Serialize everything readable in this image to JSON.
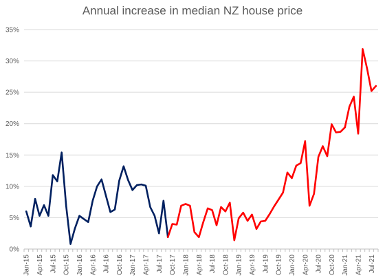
{
  "chart_data": {
    "type": "line",
    "title": "Annual increase in median NZ house price",
    "xlabel": "",
    "ylabel": "",
    "ylim": [
      0,
      35
    ],
    "yticks": [
      "0%",
      "5%",
      "10%",
      "15%",
      "20%",
      "25%",
      "30%",
      "35%"
    ],
    "grid": true,
    "legend": "none",
    "x_tick_labels": [
      "Jan-15",
      "Apr-15",
      "Jul-15",
      "Oct-15",
      "Jan-16",
      "Apr-16",
      "Jul-16",
      "Oct-16",
      "Jan-17",
      "Apr-17",
      "Jul-17",
      "Oct-17",
      "Jan-18",
      "Apr-18",
      "Jul-18",
      "Oct-18",
      "Jan-19",
      "Apr-19",
      "Jul-19",
      "Oct-19",
      "Jan-20",
      "Apr-20",
      "Jul-20",
      "Oct-20",
      "Jan-21",
      "Apr-21",
      "Jul-21"
    ],
    "x": [
      "Jan-15",
      "Feb-15",
      "Mar-15",
      "Apr-15",
      "May-15",
      "Jun-15",
      "Jul-15",
      "Aug-15",
      "Sep-15",
      "Oct-15",
      "Nov-15",
      "Dec-15",
      "Jan-16",
      "Feb-16",
      "Mar-16",
      "Apr-16",
      "May-16",
      "Jun-16",
      "Jul-16",
      "Aug-16",
      "Sep-16",
      "Oct-16",
      "Nov-16",
      "Dec-16",
      "Jan-17",
      "Feb-17",
      "Mar-17",
      "Apr-17",
      "May-17",
      "Jun-17",
      "Jul-17",
      "Aug-17",
      "Sep-17",
      "Oct-17",
      "Nov-17",
      "Dec-17",
      "Jan-18",
      "Feb-18",
      "Mar-18",
      "Apr-18",
      "May-18",
      "Jun-18",
      "Jul-18",
      "Aug-18",
      "Sep-18",
      "Oct-18",
      "Nov-18",
      "Dec-18",
      "Jan-19",
      "Feb-19",
      "Mar-19",
      "Apr-19",
      "May-19",
      "Jun-19",
      "Jul-19",
      "Aug-19",
      "Sep-19",
      "Oct-19",
      "Nov-19",
      "Dec-19",
      "Jan-20",
      "Feb-20",
      "Mar-20",
      "Apr-20",
      "May-20",
      "Jun-20",
      "Jul-20",
      "Aug-20",
      "Sep-20",
      "Oct-20",
      "Nov-20",
      "Dec-20",
      "Jan-21",
      "Feb-21",
      "Mar-21",
      "Apr-21",
      "May-21",
      "Jun-21",
      "Jul-21",
      "Aug-21"
    ],
    "values": [
      6.0,
      3.6,
      8.0,
      5.3,
      7.0,
      5.3,
      11.8,
      10.8,
      15.4,
      6.9,
      0.8,
      3.3,
      5.3,
      4.8,
      4.3,
      7.7,
      10.0,
      11.1,
      8.5,
      5.9,
      6.3,
      10.9,
      13.2,
      11.0,
      9.4,
      10.2,
      10.3,
      10.1,
      6.7,
      5.3,
      2.5,
      7.7,
      1.9,
      4.0,
      3.9,
      6.9,
      7.2,
      6.9,
      2.7,
      1.9,
      4.3,
      6.5,
      6.2,
      3.8,
      6.7,
      6.0,
      7.4,
      1.4,
      4.9,
      5.8,
      4.5,
      5.5,
      3.2,
      4.4,
      4.5,
      5.6,
      6.8,
      7.9,
      9.0,
      12.2,
      11.3,
      13.3,
      13.7,
      17.2,
      6.9,
      8.8,
      14.7,
      16.4,
      14.8,
      19.9,
      18.6,
      18.7,
      19.4,
      22.7,
      24.3,
      18.4,
      31.9,
      28.8,
      25.2,
      26.0
    ],
    "series": [
      {
        "color": "#002060",
        "start": 0,
        "end": 32
      },
      {
        "color": "#ff0000",
        "start": 32,
        "end": 79
      }
    ],
    "colors": {
      "grid": "#d9d9d9",
      "axis": "#bfbfbf"
    }
  }
}
